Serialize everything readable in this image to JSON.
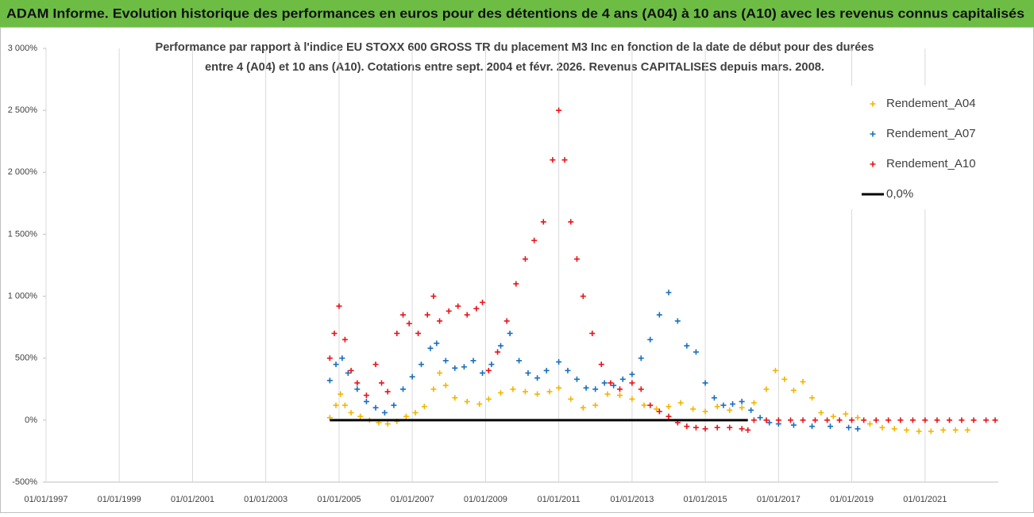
{
  "chart_data": {
    "type": "scatter",
    "header": "ADAM Informe. Evolution historique des performances en euros pour des détentions de 4 ans (A04) à 10 ans (A10) avec les revenus connus capitalisés",
    "title": [
      "Performance par rapport à l'indice EU STOXX 600 GROSS TR  du placement M3 Inc en fonction de la date de début pour des durées",
      "entre 4 (A04) et 10 ans (A10). Cotations entre sept. 2004 et févr. 2026. Revenus CAPITALISES depuis mars. 2008."
    ],
    "xlim": [
      "1997-01-01",
      "2023-01-01"
    ],
    "xticks": [
      {
        "value": "1997-01-01",
        "label": "01/01/1997"
      },
      {
        "value": "1999-01-01",
        "label": "01/01/1999"
      },
      {
        "value": "2001-01-01",
        "label": "01/01/2001"
      },
      {
        "value": "2003-01-01",
        "label": "01/01/2003"
      },
      {
        "value": "2005-01-01",
        "label": "01/01/2005"
      },
      {
        "value": "2007-01-01",
        "label": "01/01/2007"
      },
      {
        "value": "2009-01-01",
        "label": "01/01/2009"
      },
      {
        "value": "2011-01-01",
        "label": "01/01/2011"
      },
      {
        "value": "2013-01-01",
        "label": "01/01/2013"
      },
      {
        "value": "2015-01-01",
        "label": "01/01/2015"
      },
      {
        "value": "2017-01-01",
        "label": "01/01/2017"
      },
      {
        "value": "2019-01-01",
        "label": "01/01/2019"
      },
      {
        "value": "2021-01-01",
        "label": "01/01/2021"
      }
    ],
    "ylim": [
      -500,
      3000
    ],
    "yticks": [
      {
        "value": -500,
        "label": "-500%"
      },
      {
        "value": 0,
        "label": "0%"
      },
      {
        "value": 500,
        "label": "500%"
      },
      {
        "value": 1000,
        "label": "1 000%"
      },
      {
        "value": 1500,
        "label": "1 500%"
      },
      {
        "value": 2000,
        "label": "2 000%"
      },
      {
        "value": 2500,
        "label": "2 500%"
      },
      {
        "value": 3000,
        "label": "3 000%"
      }
    ],
    "grid": "x",
    "series": [
      {
        "name": "Rendement_A04",
        "color": "#f2b600",
        "style": "marker",
        "x": [
          "2004-10-01",
          "2004-12-01",
          "2005-01-15",
          "2005-03-01",
          "2005-05-01",
          "2005-08-01",
          "2005-11-01",
          "2006-02-01",
          "2006-05-01",
          "2006-08-01",
          "2006-11-01",
          "2007-02-01",
          "2007-05-01",
          "2007-08-01",
          "2007-10-01",
          "2007-12-01",
          "2008-03-01",
          "2008-07-01",
          "2008-11-01",
          "2009-02-01",
          "2009-06-01",
          "2009-10-01",
          "2010-02-01",
          "2010-06-01",
          "2010-10-01",
          "2011-01-01",
          "2011-05-01",
          "2011-09-01",
          "2012-01-01",
          "2012-05-01",
          "2012-09-01",
          "2013-01-01",
          "2013-05-01",
          "2013-09-01",
          "2014-01-01",
          "2014-05-01",
          "2014-09-01",
          "2015-01-01",
          "2015-05-01",
          "2015-09-01",
          "2016-01-01",
          "2016-05-01",
          "2016-09-01",
          "2016-12-01",
          "2017-03-01",
          "2017-06-01",
          "2017-09-01",
          "2017-12-01",
          "2018-03-01",
          "2018-07-01",
          "2018-11-01",
          "2019-03-01",
          "2019-07-01",
          "2019-11-01",
          "2020-03-01",
          "2020-07-01",
          "2020-11-01",
          "2021-03-01",
          "2021-07-01",
          "2021-11-01",
          "2022-03-01"
        ],
        "values": [
          20,
          120,
          210,
          120,
          60,
          30,
          0,
          -20,
          -30,
          -10,
          30,
          60,
          110,
          250,
          380,
          280,
          180,
          150,
          130,
          170,
          220,
          250,
          230,
          210,
          230,
          260,
          170,
          100,
          120,
          210,
          200,
          170,
          120,
          90,
          110,
          140,
          90,
          70,
          110,
          80,
          100,
          140,
          250,
          400,
          330,
          240,
          310,
          180,
          60,
          30,
          50,
          20,
          -30,
          -60,
          -70,
          -80,
          -90,
          -90,
          -80,
          -80,
          -80
        ]
      },
      {
        "name": "Rendement_A07",
        "color": "#1a6fbf",
        "style": "marker",
        "x": [
          "2004-10-01",
          "2004-12-01",
          "2005-02-01",
          "2005-04-01",
          "2005-07-01",
          "2005-10-01",
          "2006-01-01",
          "2006-04-01",
          "2006-07-01",
          "2006-10-01",
          "2007-01-01",
          "2007-04-01",
          "2007-07-01",
          "2007-09-01",
          "2007-12-01",
          "2008-03-01",
          "2008-06-01",
          "2008-09-01",
          "2008-12-01",
          "2009-03-01",
          "2009-06-01",
          "2009-09-01",
          "2009-12-01",
          "2010-03-01",
          "2010-06-01",
          "2010-09-01",
          "2011-01-01",
          "2011-04-01",
          "2011-07-01",
          "2011-10-01",
          "2012-01-01",
          "2012-04-01",
          "2012-07-01",
          "2012-10-01",
          "2013-01-01",
          "2013-04-01",
          "2013-07-01",
          "2013-10-01",
          "2014-01-01",
          "2014-04-01",
          "2014-07-01",
          "2014-10-01",
          "2015-01-01",
          "2015-04-01",
          "2015-07-01",
          "2015-10-01",
          "2016-01-01",
          "2016-04-01",
          "2016-07-01",
          "2016-10-01",
          "2017-01-01",
          "2017-06-01",
          "2017-12-01",
          "2018-06-01",
          "2018-12-01",
          "2019-03-01"
        ],
        "values": [
          320,
          450,
          500,
          380,
          250,
          150,
          100,
          60,
          120,
          250,
          350,
          450,
          580,
          620,
          480,
          420,
          430,
          480,
          380,
          450,
          600,
          700,
          480,
          380,
          340,
          400,
          470,
          400,
          330,
          260,
          250,
          300,
          280,
          330,
          370,
          500,
          650,
          850,
          1030,
          800,
          600,
          550,
          300,
          180,
          120,
          130,
          150,
          80,
          20,
          -20,
          -30,
          -40,
          -50,
          -50,
          -60,
          -70
        ]
      },
      {
        "name": "Rendement_A10",
        "color": "#e8141b",
        "style": "marker",
        "x": [
          "2004-10-01",
          "2004-11-15",
          "2005-01-01",
          "2005-03-01",
          "2005-05-01",
          "2005-07-01",
          "2005-10-01",
          "2006-01-01",
          "2006-03-01",
          "2006-05-01",
          "2006-08-01",
          "2006-10-01",
          "2006-12-01",
          "2007-03-01",
          "2007-06-01",
          "2007-08-01",
          "2007-10-01",
          "2008-01-01",
          "2008-04-01",
          "2008-07-01",
          "2008-10-01",
          "2008-12-01",
          "2009-02-01",
          "2009-05-01",
          "2009-08-01",
          "2009-11-01",
          "2010-02-01",
          "2010-05-01",
          "2010-08-01",
          "2010-11-01",
          "2011-01-01",
          "2011-03-01",
          "2011-05-01",
          "2011-07-01",
          "2011-09-01",
          "2011-12-01",
          "2012-03-01",
          "2012-06-01",
          "2012-09-01",
          "2013-01-01",
          "2013-04-01",
          "2013-07-01",
          "2013-10-01",
          "2014-01-01",
          "2014-04-01",
          "2014-07-01",
          "2014-10-01",
          "2015-01-01",
          "2015-05-01",
          "2015-09-01",
          "2016-01-01",
          "2016-03-01",
          "2016-05-01",
          "2016-09-01",
          "2017-01-01",
          "2017-05-01",
          "2017-09-01",
          "2018-01-01",
          "2018-05-01",
          "2018-09-01",
          "2019-01-01",
          "2019-05-01",
          "2019-09-01",
          "2020-01-01",
          "2020-05-01",
          "2020-09-01",
          "2021-01-01",
          "2021-05-01",
          "2021-09-01",
          "2022-01-01",
          "2022-05-01",
          "2022-09-01",
          "2022-12-01"
        ],
        "values": [
          500,
          700,
          920,
          650,
          400,
          300,
          200,
          450,
          300,
          230,
          700,
          850,
          780,
          700,
          850,
          1000,
          800,
          880,
          920,
          850,
          900,
          950,
          400,
          550,
          800,
          1100,
          1300,
          1450,
          1600,
          2100,
          2500,
          2100,
          1600,
          1300,
          1000,
          700,
          450,
          300,
          250,
          300,
          250,
          120,
          70,
          30,
          -20,
          -50,
          -60,
          -70,
          -60,
          -60,
          -70,
          -80,
          0,
          0,
          0,
          0,
          0,
          0,
          0,
          0,
          0,
          0,
          0,
          0,
          0,
          0,
          0,
          0,
          0,
          0,
          0,
          0,
          0
        ]
      },
      {
        "name": "0,0%",
        "color": "#000000",
        "style": "line",
        "x": [
          "2004-10-01",
          "2016-03-01"
        ],
        "values": [
          0,
          0
        ]
      }
    ]
  }
}
